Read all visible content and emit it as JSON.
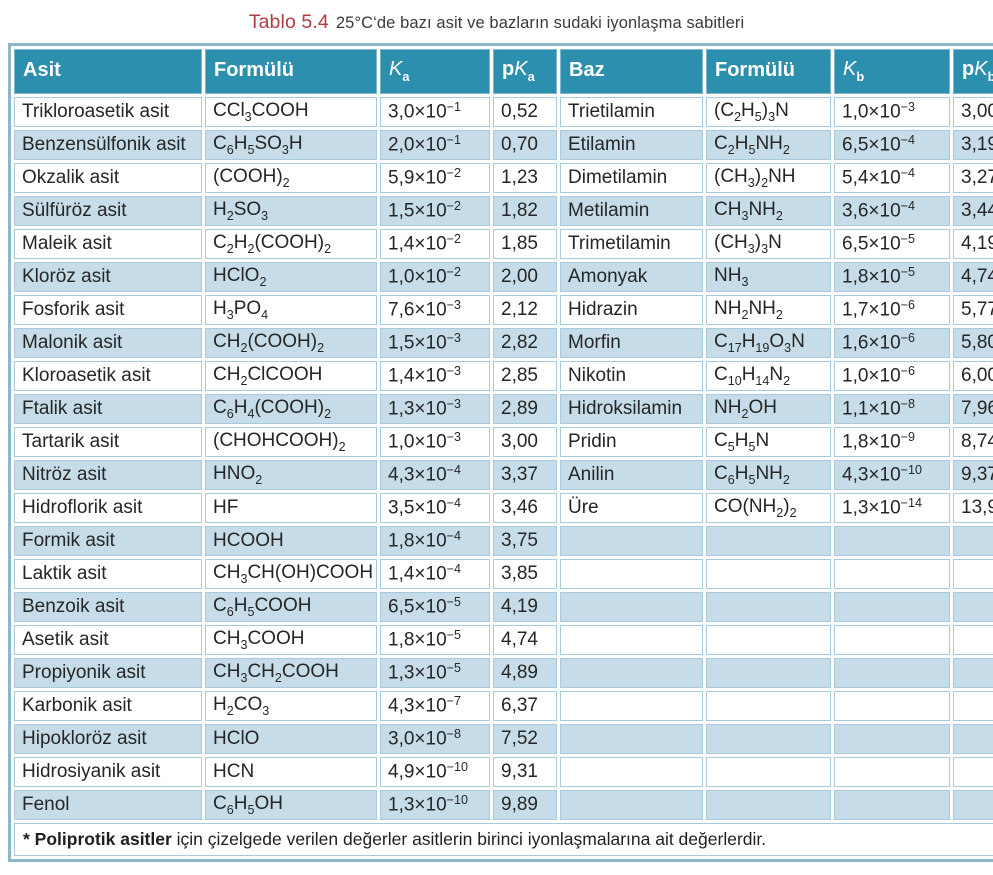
{
  "title": {
    "label": "Tablo 5.4",
    "text": "25°C‘de bazı asit ve bazların sudaki iyonlaşma sabitleri"
  },
  "headers": {
    "asit": "Asit",
    "formulu": "Formülü",
    "baz": "Baz",
    "p": "p",
    "k": "K",
    "a": "a",
    "b": "b"
  },
  "rows": [
    {
      "acid": "Trikloroasetik asit",
      "acid_formula": "CCl_3COOH",
      "ka": "3,0×10^-1",
      "pka": "0,52",
      "base": "Trietilamin",
      "base_formula": "(C_2H_5)_3N",
      "kb": "1,0×10^-3",
      "pkb": "3,00"
    },
    {
      "acid": "Benzensülfonik asit",
      "acid_formula": "C_6H_5SO_3H",
      "ka": "2,0×10^-1",
      "pka": "0,70",
      "base": "Etilamin",
      "base_formula": "C_2H_5NH_2",
      "kb": "6,5×10^-4",
      "pkb": "3,19"
    },
    {
      "acid": "Okzalik asit",
      "acid_formula": "(COOH)_2",
      "ka": "5,9×10^-2",
      "pka": "1,23",
      "base": "Dimetilamin",
      "base_formula": "(CH_3)_2NH",
      "kb": "5,4×10^-4",
      "pkb": "3,27"
    },
    {
      "acid": "Sülfüröz asit",
      "acid_formula": "H_2SO_3",
      "ka": "1,5×10^-2",
      "pka": "1,82",
      "base": "Metilamin",
      "base_formula": "CH_3NH_2",
      "kb": "3,6×10^-4",
      "pkb": "3,44"
    },
    {
      "acid": "Maleik asit",
      "acid_formula": "C_2H_2(COOH)_2",
      "ka": "1,4×10^-2",
      "pka": "1,85",
      "base": "Trimetilamin",
      "base_formula": "(CH_3)_3N",
      "kb": "6,5×10^-5",
      "pkb": "4,19"
    },
    {
      "acid": "Kloröz asit",
      "acid_formula": "HClO_2",
      "ka": "1,0×10^-2",
      "pka": "2,00",
      "base": "Amonyak",
      "base_formula": "NH_3",
      "kb": "1,8×10^-5",
      "pkb": "4,74"
    },
    {
      "acid": "Fosforik asit",
      "acid_formula": "H_3PO_4",
      "ka": "7,6×10^-3",
      "pka": "2,12",
      "base": "Hidrazin",
      "base_formula": "NH_2NH_2",
      "kb": "1,7×10^-6",
      "pkb": "5,77"
    },
    {
      "acid": "Malonik asit",
      "acid_formula": "CH_2(COOH)_2",
      "ka": "1,5×10^-3",
      "pka": "2,82",
      "base": "Morfin",
      "base_formula": "C_17H_19O_3N",
      "kb": "1,6×10^-6",
      "pkb": "5,80"
    },
    {
      "acid": "Kloroasetik asit",
      "acid_formula": "CH_2ClCOOH",
      "ka": "1,4×10^-3",
      "pka": "2,85",
      "base": "Nikotin",
      "base_formula": "C_10H_14N_2",
      "kb": "1,0×10^-6",
      "pkb": "6,00"
    },
    {
      "acid": "Ftalik asit",
      "acid_formula": "C_6H_4(COOH)_2",
      "ka": "1,3×10^-3",
      "pka": "2,89",
      "base": "Hidroksilamin",
      "base_formula": "NH_2OH",
      "kb": "1,1×10^-8",
      "pkb": "7,96"
    },
    {
      "acid": "Tartarik asit",
      "acid_formula": "(CHOHCOOH)_2",
      "ka": "1,0×10^-3",
      "pka": "3,00",
      "base": "Pridin",
      "base_formula": "C_5H_5N",
      "kb": "1,8×10^-9",
      "pkb": "8,74"
    },
    {
      "acid": "Nitröz asit",
      "acid_formula": "HNO_2",
      "ka": "4,3×10^-4",
      "pka": "3,37",
      "base": "Anilin",
      "base_formula": "C_6H_5NH_2",
      "kb": "4,3×10^-10",
      "pkb": "9,37"
    },
    {
      "acid": "Hidroflorik asit",
      "acid_formula": "HF",
      "ka": "3,5×10^-4",
      "pka": "3,46",
      "base": "Üre",
      "base_formula": "CO(NH_2)_2",
      "kb": "1,3×10^-14",
      "pkb": "13,9"
    },
    {
      "acid": "Formik asit",
      "acid_formula": "HCOOH",
      "ka": "1,8×10^-4",
      "pka": "3,75",
      "base": "",
      "base_formula": "",
      "kb": "",
      "pkb": ""
    },
    {
      "acid": "Laktik asit",
      "acid_formula": "CH_3CH(OH)COOH",
      "ka": "1,4×10^-4",
      "pka": "3,85",
      "base": "",
      "base_formula": "",
      "kb": "",
      "pkb": ""
    },
    {
      "acid": "Benzoik asit",
      "acid_formula": "C_6H_5COOH",
      "ka": "6,5×10^-5",
      "pka": "4,19",
      "base": "",
      "base_formula": "",
      "kb": "",
      "pkb": ""
    },
    {
      "acid": "Asetik asit",
      "acid_formula": "CH_3COOH",
      "ka": "1,8×10^-5",
      "pka": "4,74",
      "base": "",
      "base_formula": "",
      "kb": "",
      "pkb": ""
    },
    {
      "acid": "Propiyonik asit",
      "acid_formula": "CH_3CH_2COOH",
      "ka": "1,3×10^-5",
      "pka": "4,89",
      "base": "",
      "base_formula": "",
      "kb": "",
      "pkb": ""
    },
    {
      "acid": "Karbonik asit",
      "acid_formula": "H_2CO_3",
      "ka": "4,3×10^-7",
      "pka": "6,37",
      "base": "",
      "base_formula": "",
      "kb": "",
      "pkb": ""
    },
    {
      "acid": "Hipokloröz asit",
      "acid_formula": "HClO",
      "ka": "3,0×10^-8",
      "pka": "7,52",
      "base": "",
      "base_formula": "",
      "kb": "",
      "pkb": ""
    },
    {
      "acid": "Hidrosiyanik asit",
      "acid_formula": "HCN",
      "ka": "4,9×10^-10",
      "pka": "9,31",
      "base": "",
      "base_formula": "",
      "kb": "",
      "pkb": ""
    },
    {
      "acid": "Fenol",
      "acid_formula": "C_6H_5OH",
      "ka": "1,3×10^-10",
      "pka": "9,89",
      "base": "",
      "base_formula": "",
      "kb": "",
      "pkb": ""
    }
  ],
  "footnote": {
    "bold": "* Poliprotik asitler",
    "rest": " için çizelgede verilen değerler asitlerin birinci iyonlaşmalarına ait değerlerdir."
  },
  "colors": {
    "header_bg": "#2d8fae",
    "row_alt_bg": "#c6dde9",
    "row_bg": "#ffffff",
    "outer_border": "#8fb5cb",
    "grid_line": "#a9cadd",
    "title_accent": "#b23b44",
    "text": "#262626"
  }
}
